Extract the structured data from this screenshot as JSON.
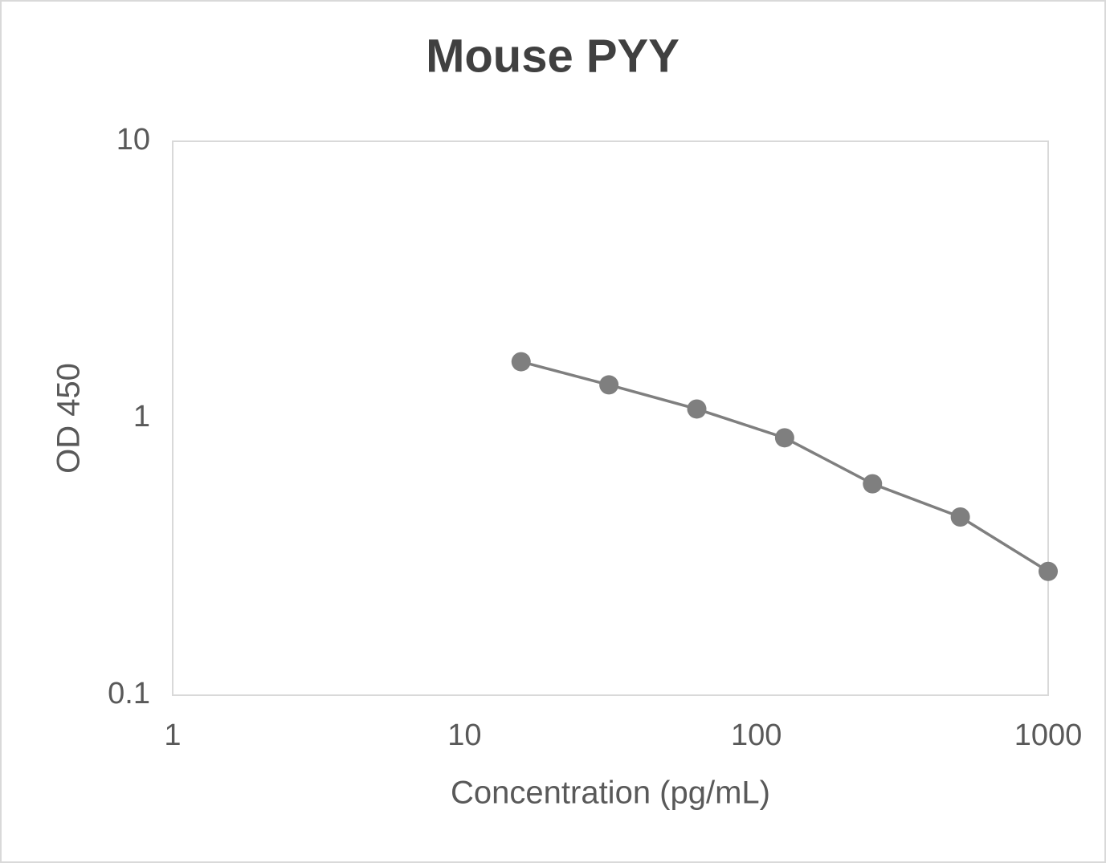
{
  "chart_data": {
    "type": "line",
    "title": "Mouse PYY",
    "x_label": "Concentration (pg/mL)",
    "y_label": "OD 450",
    "x": [
      15.625,
      31.25,
      62.5,
      125,
      250,
      500,
      1000
    ],
    "series": [
      {
        "name": "Mouse PYY",
        "color": "#7f7f7f",
        "values": [
          1.6,
          1.32,
          1.08,
          0.85,
          0.58,
          0.44,
          0.28
        ]
      }
    ],
    "xlim": [
      1,
      1000
    ],
    "xticks": [
      1,
      10,
      100,
      1000
    ],
    "ylim": [
      0.1,
      10
    ],
    "yticks": [
      0.1,
      1,
      10
    ],
    "xlog": true,
    "ylog": true,
    "grid": false,
    "legend": false
  }
}
